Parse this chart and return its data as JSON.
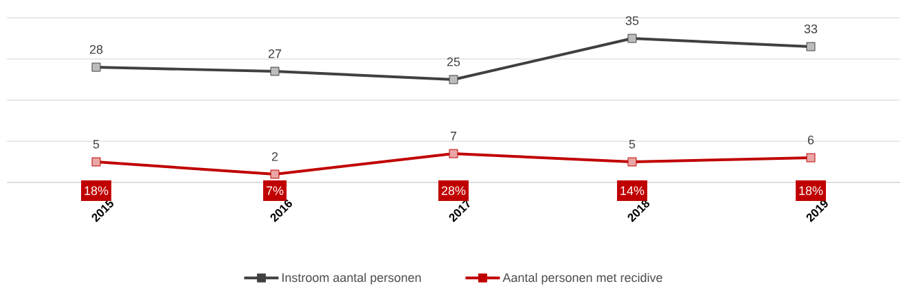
{
  "chart_data": {
    "type": "line",
    "categories": [
      "2015",
      "2016",
      "2017",
      "2018",
      "2019"
    ],
    "series": [
      {
        "name": "Instroom aantal personen",
        "color": "#404040",
        "values": [
          28,
          27,
          25,
          35,
          33
        ]
      },
      {
        "name": "Aantal personen met recidive",
        "color": "#c00000",
        "values": [
          5,
          2,
          7,
          5,
          6
        ]
      }
    ],
    "tick_labels": "x",
    "grid": "y",
    "legend": "bottom",
    "marker": "square",
    "line_style": "solid",
    "data_labels": true,
    "annotations": [
      "18%",
      "7%",
      "28%",
      "14%",
      "18%"
    ]
  }
}
